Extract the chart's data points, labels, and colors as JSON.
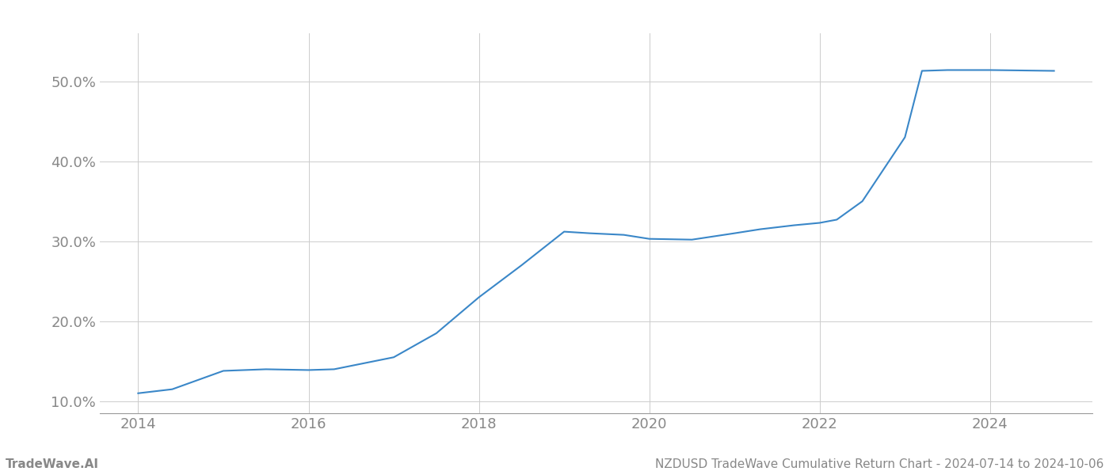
{
  "x_values": [
    2014.0,
    2014.4,
    2015.0,
    2015.5,
    2016.0,
    2016.3,
    2017.0,
    2017.5,
    2018.0,
    2018.5,
    2019.0,
    2019.3,
    2019.7,
    2020.0,
    2020.5,
    2021.0,
    2021.3,
    2021.7,
    2022.0,
    2022.2,
    2022.5,
    2023.0,
    2023.2,
    2023.5,
    2024.0,
    2024.75
  ],
  "y_values": [
    11.0,
    11.5,
    13.8,
    14.0,
    13.9,
    14.0,
    15.5,
    18.5,
    23.0,
    27.0,
    31.2,
    31.0,
    30.8,
    30.3,
    30.2,
    31.0,
    31.5,
    32.0,
    32.3,
    32.7,
    35.0,
    43.0,
    51.3,
    51.4,
    51.4,
    51.3
  ],
  "line_color": "#3a87c8",
  "line_width": 1.5,
  "background_color": "#ffffff",
  "grid_color": "#cccccc",
  "xlim": [
    2013.55,
    2025.2
  ],
  "ylim": [
    8.5,
    56.0
  ],
  "yticks": [
    10.0,
    20.0,
    30.0,
    40.0,
    50.0
  ],
  "ytick_labels": [
    "10.0%",
    "20.0%",
    "30.0%",
    "40.0%",
    "50.0%"
  ],
  "xticks": [
    2014,
    2016,
    2018,
    2020,
    2022,
    2024
  ],
  "xtick_labels": [
    "2014",
    "2016",
    "2018",
    "2020",
    "2022",
    "2024"
  ],
  "footer_left": "TradeWave.AI",
  "footer_right": "NZDUSD TradeWave Cumulative Return Chart - 2024-07-14 to 2024-10-06",
  "tick_fontsize": 13,
  "footer_fontsize": 11,
  "tick_color": "#888888",
  "axis_color": "#999999"
}
